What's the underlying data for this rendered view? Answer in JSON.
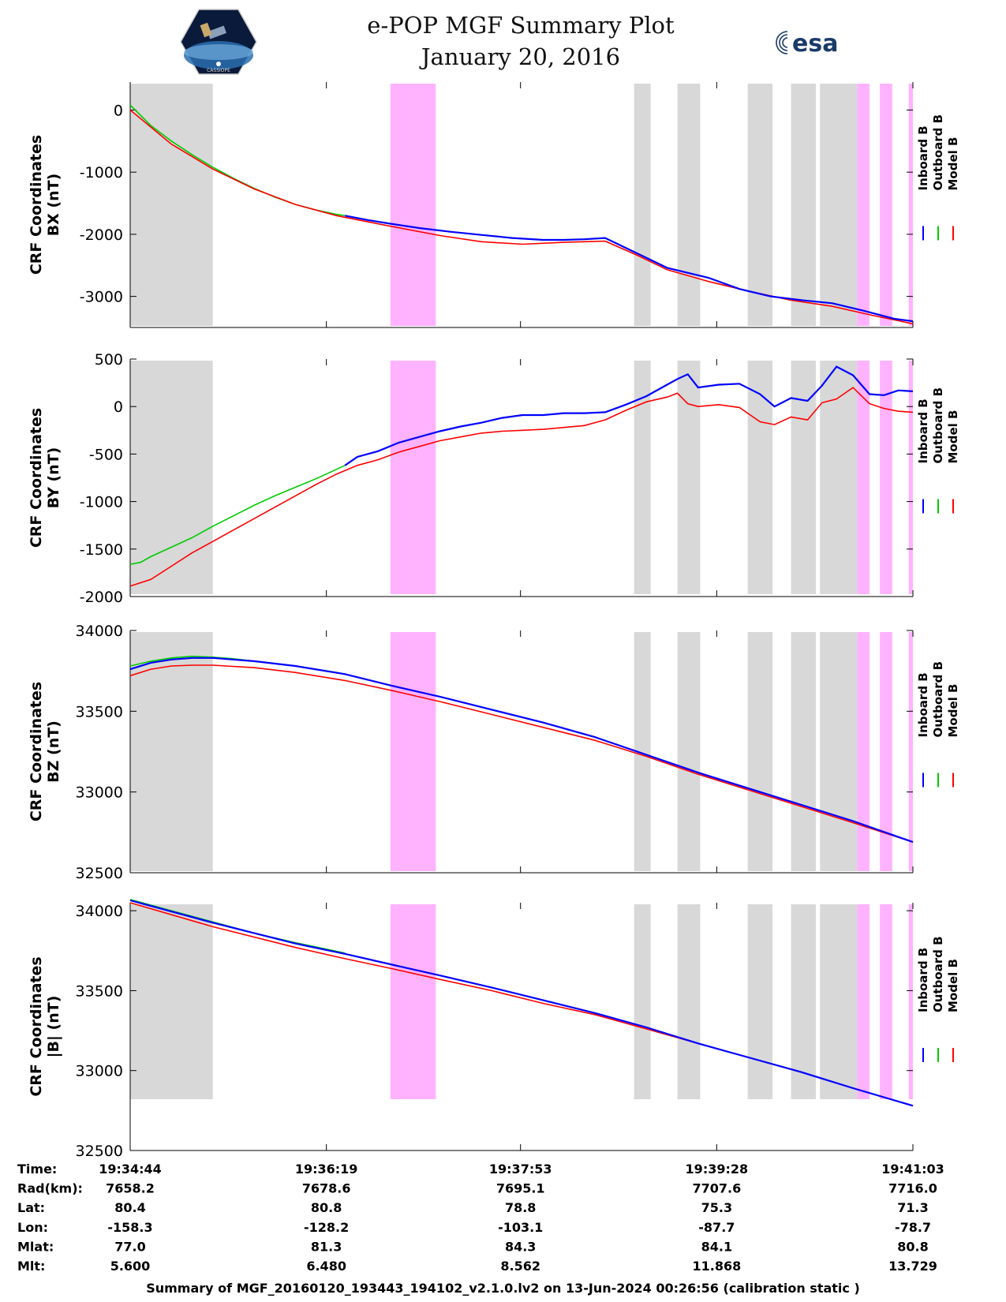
{
  "header": {
    "title": "e-POP MGF Summary Plot",
    "date": "January 20, 2016",
    "logo_left_caption": "CASSIOPE",
    "logo_right_text": "esa"
  },
  "legend": {
    "items": [
      {
        "label": "Inboard B",
        "color": "#0000ff"
      },
      {
        "label": "Outboard B",
        "color": "#00cc00"
      },
      {
        "label": "Model B",
        "color": "#ff0000"
      }
    ]
  },
  "colors": {
    "gray_band": "#d8d8d8",
    "magenta_band": "#ffb3ff",
    "inboard": "#0000ff",
    "outboard": "#00cc00",
    "model": "#ff0000"
  },
  "chart_data": [
    {
      "type": "line",
      "ylabel": [
        "CRF Coordinates",
        "BX (nT)"
      ],
      "ylim": [
        -3500,
        450
      ],
      "yticks": [
        0,
        -1000,
        -2000,
        -3000
      ],
      "xlim": [
        0,
        379
      ],
      "shaded_intervals": [
        {
          "kind": "gray",
          "x": [
            0,
            40
          ]
        },
        {
          "kind": "magenta",
          "x": [
            126,
            148
          ]
        },
        {
          "kind": "gray",
          "x": [
            244,
            252
          ]
        },
        {
          "kind": "gray",
          "x": [
            265,
            276
          ]
        },
        {
          "kind": "gray",
          "x": [
            299,
            311
          ]
        },
        {
          "kind": "gray",
          "x": [
            320,
            332
          ]
        },
        {
          "kind": "gray",
          "x": [
            334,
            352
          ]
        },
        {
          "kind": "magenta",
          "x": [
            352,
            358
          ]
        },
        {
          "kind": "magenta",
          "x": [
            363,
            369
          ]
        },
        {
          "kind": "magenta",
          "x": [
            377,
            379
          ]
        }
      ],
      "series": [
        {
          "name": "Outboard B",
          "x": [
            0,
            10,
            20,
            30,
            40,
            50,
            60,
            70,
            80,
            90,
            100,
            104
          ],
          "values": [
            80,
            -250,
            -500,
            -720,
            -920,
            -1100,
            -1260,
            -1400,
            -1520,
            -1610,
            -1680,
            -1700
          ]
        },
        {
          "name": "Inboard B",
          "x": [
            104,
            115,
            126,
            140,
            155,
            170,
            185,
            200,
            210,
            220,
            230,
            245,
            260,
            280,
            295,
            310,
            325,
            340,
            355,
            370,
            379
          ],
          "values": [
            -1700,
            -1770,
            -1830,
            -1900,
            -1960,
            -2010,
            -2060,
            -2090,
            -2090,
            -2080,
            -2060,
            -2300,
            -2540,
            -2700,
            -2880,
            -3000,
            -3060,
            -3110,
            -3230,
            -3360,
            -3400
          ]
        },
        {
          "name": "Model B",
          "x": [
            0,
            20,
            40,
            60,
            80,
            100,
            126,
            150,
            170,
            190,
            210,
            230,
            245,
            260,
            280,
            300,
            320,
            340,
            360,
            379
          ],
          "values": [
            0,
            -550,
            -950,
            -1270,
            -1520,
            -1700,
            -1870,
            -2020,
            -2120,
            -2160,
            -2130,
            -2110,
            -2330,
            -2570,
            -2760,
            -2920,
            -3060,
            -3160,
            -3310,
            -3440
          ]
        }
      ]
    },
    {
      "type": "line",
      "ylabel": [
        "CRF Coordinates",
        "BY (nT)"
      ],
      "ylim": [
        -2000,
        500
      ],
      "yticks": [
        500,
        0,
        -500,
        -1000,
        -1500,
        -2000
      ],
      "xlim": [
        0,
        379
      ],
      "shaded_intervals": [
        {
          "kind": "gray",
          "x": [
            0,
            40
          ]
        },
        {
          "kind": "magenta",
          "x": [
            126,
            148
          ]
        },
        {
          "kind": "gray",
          "x": [
            244,
            252
          ]
        },
        {
          "kind": "gray",
          "x": [
            265,
            276
          ]
        },
        {
          "kind": "gray",
          "x": [
            299,
            311
          ]
        },
        {
          "kind": "gray",
          "x": [
            320,
            332
          ]
        },
        {
          "kind": "gray",
          "x": [
            334,
            352
          ]
        },
        {
          "kind": "magenta",
          "x": [
            352,
            358
          ]
        },
        {
          "kind": "magenta",
          "x": [
            363,
            369
          ]
        },
        {
          "kind": "magenta",
          "x": [
            377,
            379
          ]
        }
      ],
      "series": [
        {
          "name": "Outboard B",
          "x": [
            0,
            5,
            10,
            20,
            30,
            40,
            50,
            60,
            70,
            80,
            90,
            100,
            104
          ],
          "values": [
            -1660,
            -1640,
            -1580,
            -1480,
            -1380,
            -1260,
            -1150,
            -1040,
            -940,
            -850,
            -760,
            -660,
            -620
          ]
        },
        {
          "name": "Inboard B",
          "x": [
            104,
            110,
            120,
            130,
            140,
            150,
            160,
            170,
            180,
            190,
            200,
            210,
            220,
            230,
            240,
            250,
            260,
            265,
            270,
            275,
            285,
            295,
            305,
            312,
            320,
            328,
            335,
            342,
            350,
            358,
            365,
            372,
            379
          ],
          "values": [
            -620,
            -530,
            -470,
            -380,
            -320,
            -260,
            -210,
            -170,
            -120,
            -90,
            -90,
            -70,
            -70,
            -60,
            20,
            110,
            230,
            290,
            340,
            200,
            230,
            240,
            130,
            0,
            90,
            60,
            220,
            420,
            330,
            130,
            120,
            170,
            160
          ]
        },
        {
          "name": "Model B",
          "x": [
            0,
            10,
            20,
            30,
            40,
            50,
            60,
            70,
            80,
            90,
            100,
            110,
            120,
            130,
            140,
            150,
            160,
            170,
            180,
            190,
            200,
            210,
            220,
            230,
            240,
            250,
            260,
            265,
            270,
            275,
            285,
            295,
            305,
            312,
            320,
            328,
            335,
            342,
            350,
            358,
            365,
            372,
            379
          ],
          "values": [
            -1890,
            -1820,
            -1680,
            -1540,
            -1420,
            -1300,
            -1180,
            -1060,
            -940,
            -820,
            -710,
            -620,
            -560,
            -480,
            -420,
            -360,
            -320,
            -280,
            -260,
            -250,
            -240,
            -220,
            -200,
            -140,
            -40,
            50,
            100,
            140,
            30,
            0,
            20,
            -10,
            -160,
            -190,
            -110,
            -140,
            40,
            80,
            200,
            30,
            -20,
            -50,
            -60
          ]
        }
      ]
    },
    {
      "type": "line",
      "ylabel": [
        "CRF Coordinates",
        "BZ (nT)"
      ],
      "ylim": [
        32500,
        34000
      ],
      "yticks": [
        34000,
        33500,
        33000,
        32500
      ],
      "xlim": [
        0,
        379
      ],
      "shaded_intervals": [
        {
          "kind": "gray",
          "x": [
            0,
            40
          ]
        },
        {
          "kind": "magenta",
          "x": [
            126,
            148
          ]
        },
        {
          "kind": "gray",
          "x": [
            244,
            252
          ]
        },
        {
          "kind": "gray",
          "x": [
            265,
            276
          ]
        },
        {
          "kind": "gray",
          "x": [
            299,
            311
          ]
        },
        {
          "kind": "gray",
          "x": [
            320,
            332
          ]
        },
        {
          "kind": "gray",
          "x": [
            334,
            352
          ]
        },
        {
          "kind": "magenta",
          "x": [
            352,
            358
          ]
        },
        {
          "kind": "magenta",
          "x": [
            363,
            369
          ]
        },
        {
          "kind": "magenta",
          "x": [
            377,
            379
          ]
        }
      ],
      "series": [
        {
          "name": "Outboard B",
          "x": [
            0,
            10,
            20,
            30,
            40,
            50,
            60,
            70,
            80,
            90,
            100,
            104
          ],
          "values": [
            33780,
            33810,
            33830,
            33840,
            33835,
            33825,
            33810,
            33795,
            33780,
            33760,
            33740,
            33730
          ]
        },
        {
          "name": "Inboard B",
          "x": [
            0,
            10,
            20,
            30,
            40,
            60,
            80,
            104,
            126,
            150,
            175,
            200,
            225,
            250,
            275,
            300,
            325,
            350,
            379
          ],
          "values": [
            33760,
            33800,
            33820,
            33830,
            33830,
            33810,
            33780,
            33730,
            33660,
            33590,
            33510,
            33430,
            33340,
            33230,
            33120,
            33020,
            32920,
            32820,
            32690
          ]
        },
        {
          "name": "Model B",
          "x": [
            0,
            10,
            20,
            30,
            40,
            60,
            80,
            104,
            126,
            150,
            175,
            200,
            225,
            250,
            275,
            300,
            325,
            350,
            379
          ],
          "values": [
            33720,
            33760,
            33780,
            33785,
            33785,
            33770,
            33740,
            33690,
            33630,
            33560,
            33480,
            33400,
            33320,
            33220,
            33110,
            33010,
            32910,
            32810,
            32690
          ]
        }
      ]
    },
    {
      "type": "line",
      "ylabel": [
        "CRF Coordinates",
        "|B| (nT)"
      ],
      "ylim": [
        32500,
        34050
      ],
      "yticks": [
        34000,
        33500,
        33000,
        32500
      ],
      "xlim": [
        0,
        379
      ],
      "shaded_intervals": [
        {
          "kind": "gray",
          "x": [
            0,
            40
          ]
        },
        {
          "kind": "magenta",
          "x": [
            126,
            148
          ]
        },
        {
          "kind": "gray",
          "x": [
            244,
            252
          ]
        },
        {
          "kind": "gray",
          "x": [
            265,
            276
          ]
        },
        {
          "kind": "gray",
          "x": [
            299,
            311
          ]
        },
        {
          "kind": "gray",
          "x": [
            320,
            332
          ]
        },
        {
          "kind": "gray",
          "x": [
            334,
            352
          ]
        },
        {
          "kind": "magenta",
          "x": [
            352,
            358
          ]
        },
        {
          "kind": "magenta",
          "x": [
            363,
            369
          ]
        },
        {
          "kind": "magenta",
          "x": [
            377,
            379
          ]
        }
      ],
      "series": [
        {
          "name": "Outboard B",
          "x": [
            0,
            20,
            40,
            60,
            80,
            104
          ],
          "values": [
            34070,
            34000,
            33930,
            33860,
            33800,
            33735
          ]
        },
        {
          "name": "Inboard B",
          "x": [
            0,
            40,
            80,
            104,
            126,
            150,
            175,
            200,
            225,
            250,
            275,
            300,
            325,
            350,
            379
          ],
          "values": [
            34065,
            33925,
            33795,
            33730,
            33665,
            33595,
            33520,
            33440,
            33360,
            33270,
            33170,
            33080,
            32990,
            32890,
            32780
          ]
        },
        {
          "name": "Model B",
          "x": [
            0,
            40,
            80,
            104,
            126,
            150,
            175,
            200,
            225,
            250,
            275,
            300,
            325,
            350,
            379
          ],
          "values": [
            34050,
            33900,
            33770,
            33700,
            33640,
            33570,
            33500,
            33420,
            33350,
            33260,
            33170,
            33080,
            32990,
            32890,
            32780
          ]
        }
      ]
    }
  ],
  "time_axis": {
    "row_labels": [
      "Time:",
      "Rad(km):",
      "Lat:",
      "Lon:",
      "Mlat:",
      "Mlt:"
    ],
    "columns": [
      {
        "values": [
          "19:34:44",
          "7658.2",
          "80.4",
          "-158.3",
          "77.0",
          "5.600"
        ]
      },
      {
        "values": [
          "19:36:19",
          "7678.6",
          "80.8",
          "-128.2",
          "81.3",
          "6.480"
        ]
      },
      {
        "values": [
          "19:37:53",
          "7695.1",
          "78.8",
          "-103.1",
          "84.3",
          "8.562"
        ]
      },
      {
        "values": [
          "19:39:28",
          "7707.6",
          "75.3",
          "-87.7",
          "84.1",
          "11.868"
        ]
      },
      {
        "values": [
          "19:41:03",
          "7716.0",
          "71.3",
          "-78.7",
          "80.8",
          "13.729"
        ]
      }
    ],
    "tick_x": [
      0,
      95,
      189,
      284,
      379
    ]
  },
  "footer": "Summary of MGF_20160120_193443_194102_v2.1.0.lv2 on 13-Jun-2024 00:26:56 (calibration static )"
}
